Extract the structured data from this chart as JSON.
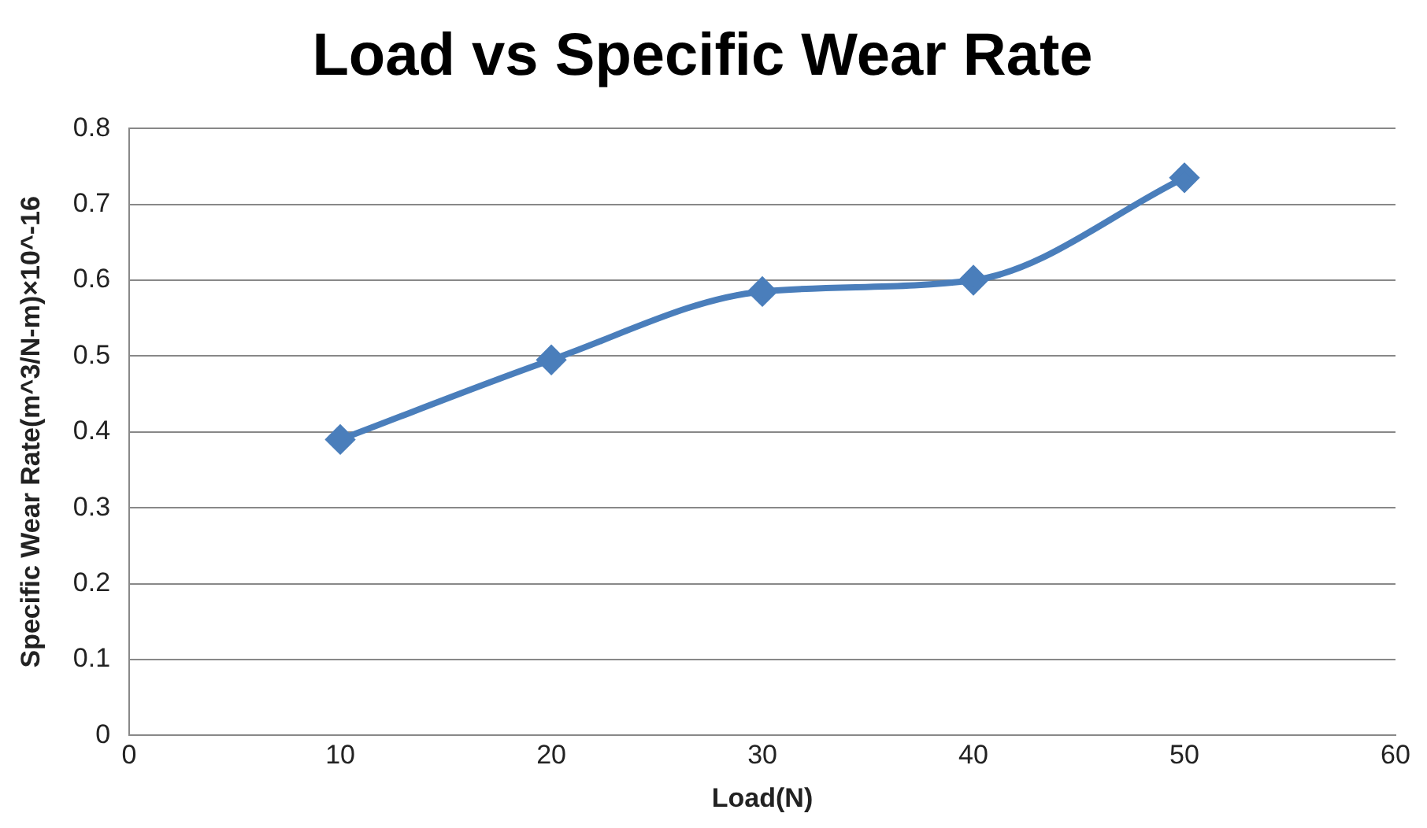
{
  "chart_data": {
    "type": "line",
    "title": "Load vs Specific Wear Rate",
    "xlabel": "Load(N)",
    "ylabel": "Specific Wear Rate(m^3/N-m)×10^-16",
    "x": [
      10,
      20,
      30,
      40,
      50
    ],
    "series": [
      {
        "color": "#4a7ebb",
        "values": [
          0.39,
          0.495,
          0.585,
          0.6,
          0.735
        ]
      }
    ],
    "xlim": [
      0,
      60
    ],
    "xticks": [
      0,
      10,
      20,
      30,
      40,
      50,
      60
    ],
    "ylim": [
      0,
      0.8
    ],
    "yticks": [
      0,
      0.1,
      0.2,
      0.3,
      0.4,
      0.5,
      0.6,
      0.7,
      0.8
    ],
    "grid": "y",
    "marker": "diamond",
    "line_style": "solid"
  }
}
